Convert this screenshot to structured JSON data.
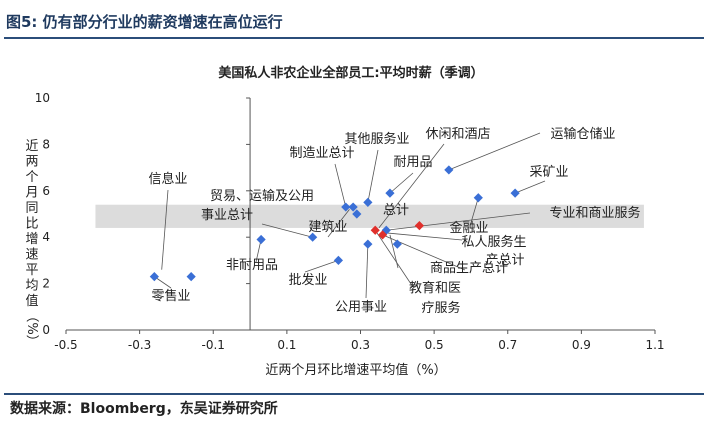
{
  "figure": {
    "caption": "图5:  仍有部分行业的薪资增速在高位运行",
    "source": "数据来源：Bloomberg，东吴证券研究所"
  },
  "colors": {
    "header_rule": "#2b4e7a",
    "series_blue": "#3a6fd6",
    "series_red": "#e0302c",
    "band": "#d6d6d6"
  },
  "chart_data": {
    "type": "scatter",
    "title": "美国私人非农企业全部员工:平均时薪（季调）",
    "xlabel": "近两个月环比增速平均值（%）",
    "ylabel": "近两个月同比增速平均值（%）",
    "xlim": [
      -0.5,
      1.1
    ],
    "ylim": [
      0,
      10
    ],
    "xticks": [
      "-0.5",
      "-0.3",
      "-0.1",
      "0.1",
      "0.3",
      "0.5",
      "0.7",
      "0.9",
      "1.1"
    ],
    "yticks": [
      "0",
      "2",
      "4",
      "6",
      "8",
      "10"
    ],
    "grid": false,
    "band": {
      "y_from": 4.4,
      "y_to": 5.4,
      "x_from": -0.42,
      "x_to": 1.07
    },
    "points": [
      {
        "x": -0.26,
        "y": 2.3,
        "color": "blue"
      },
      {
        "x": -0.16,
        "y": 2.3,
        "color": "blue"
      },
      {
        "x": 0.03,
        "y": 3.9,
        "color": "blue"
      },
      {
        "x": 0.17,
        "y": 4.0,
        "color": "blue"
      },
      {
        "x": 0.24,
        "y": 3.0,
        "color": "blue"
      },
      {
        "x": 0.26,
        "y": 5.3,
        "color": "blue"
      },
      {
        "x": 0.28,
        "y": 5.3,
        "color": "blue"
      },
      {
        "x": 0.29,
        "y": 5.0,
        "color": "blue"
      },
      {
        "x": 0.32,
        "y": 5.5,
        "color": "blue"
      },
      {
        "x": 0.32,
        "y": 3.7,
        "color": "blue"
      },
      {
        "x": 0.37,
        "y": 4.3,
        "color": "blue"
      },
      {
        "x": 0.38,
        "y": 5.9,
        "color": "blue"
      },
      {
        "x": 0.4,
        "y": 3.7,
        "color": "blue"
      },
      {
        "x": 0.54,
        "y": 6.9,
        "color": "blue"
      },
      {
        "x": 0.62,
        "y": 5.7,
        "color": "blue"
      },
      {
        "x": 0.72,
        "y": 5.9,
        "color": "blue"
      },
      {
        "x": 0.34,
        "y": 4.3,
        "color": "red"
      },
      {
        "x": 0.36,
        "y": 4.1,
        "color": "red"
      },
      {
        "x": 0.46,
        "y": 4.5,
        "color": "red"
      }
    ],
    "labels": [
      "信息业",
      "贸易、运输及公用",
      "事业总计",
      "建筑业",
      "非耐用品",
      "零售业",
      "批发业",
      "制造业总计",
      "其他服务业",
      "休闲和酒店",
      "运输仓储业",
      "耐用品",
      "总计",
      "采矿业",
      "专业和商业服务",
      "金融业",
      "私人服务生",
      "产总计",
      "商品生产总计",
      "教育和医",
      "疗服务",
      "公用事业"
    ]
  }
}
